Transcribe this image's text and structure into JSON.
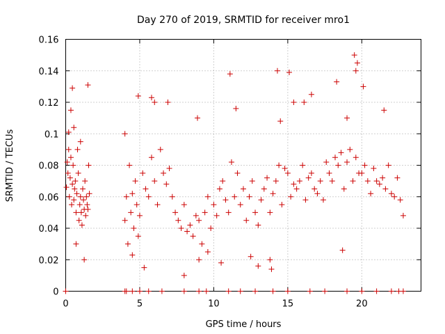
{
  "chart_data": {
    "type": "scatter",
    "title": "Day 270 of 2019, SRMTID for receiver mro1",
    "xlabel": "GPS time / hours",
    "ylabel": "SRMTID / TECUs",
    "xlim": [
      0,
      24
    ],
    "ylim": [
      0,
      0.16
    ],
    "xticks": [
      0,
      5,
      10,
      15,
      20
    ],
    "xtick_labels": [
      "0",
      "5",
      "10",
      "15",
      "20"
    ],
    "yticks": [
      0,
      0.02,
      0.04,
      0.06,
      0.08,
      0.1,
      0.12,
      0.14,
      0.16
    ],
    "ytick_labels": [
      "0",
      "0.02",
      "0.04",
      "0.06",
      "0.08",
      "0.1",
      "0.12",
      "0.14",
      "0.16"
    ],
    "grid": true,
    "marker": "plus",
    "color": "#cc0000",
    "series": [
      {
        "name": "SRMTID",
        "x": [
          0.05,
          0.1,
          0.15,
          0.2,
          0.25,
          0.3,
          0.35,
          0.4,
          0.45,
          0.5,
          0.55,
          0.6,
          0.65,
          0.7,
          0.75,
          0.8,
          0.85,
          0.9,
          0.95,
          1.0,
          1.05,
          1.1,
          1.15,
          1.2,
          1.25,
          1.3,
          1.35,
          1.4,
          1.45,
          1.5,
          1.55,
          1.6,
          0.2,
          0.35,
          0.45,
          0.55,
          0.7,
          1.0,
          1.25,
          1.5,
          4.0,
          4.1,
          4.2,
          4.3,
          4.4,
          4.5,
          4.6,
          4.7,
          4.8,
          4.9,
          5.0,
          5.2,
          5.4,
          5.6,
          5.8,
          6.0,
          6.2,
          6.4,
          6.6,
          6.8,
          7.0,
          7.2,
          7.4,
          7.6,
          7.8,
          8.0,
          8.2,
          8.4,
          8.6,
          8.8,
          9.0,
          9.2,
          9.4,
          9.6,
          9.8,
          10.0,
          10.2,
          10.4,
          10.6,
          10.8,
          11.0,
          11.2,
          11.4,
          11.6,
          11.8,
          12.0,
          12.2,
          12.4,
          12.6,
          12.8,
          13.0,
          13.2,
          13.4,
          13.6,
          13.8,
          14.0,
          14.2,
          14.4,
          14.6,
          14.8,
          15.0,
          15.2,
          15.4,
          15.6,
          15.8,
          16.0,
          16.2,
          16.4,
          16.6,
          16.8,
          17.0,
          17.2,
          17.4,
          17.6,
          17.8,
          18.0,
          18.2,
          18.4,
          18.6,
          18.8,
          19.0,
          19.2,
          19.4,
          19.6,
          19.8,
          20.0,
          20.2,
          20.4,
          20.6,
          20.8,
          21.0,
          21.2,
          21.4,
          21.6,
          21.8,
          22.0,
          22.2,
          22.4,
          22.6,
          22.8,
          4.9,
          5.8,
          6.0,
          8.9,
          11.1,
          11.5,
          13.9,
          14.3,
          14.5,
          15.1,
          16.1,
          18.3,
          19.5,
          19.6,
          19.7,
          20.1,
          4.0,
          4.5,
          5.3,
          6.9,
          8.0,
          9.0,
          9.6,
          10.5,
          12.5,
          13.0,
          13.8,
          15.4,
          16.6,
          18.7,
          19.0,
          21.5,
          0.0,
          4.0,
          4.1,
          4.5,
          5.0,
          5.6,
          6.5,
          8.0,
          9.0,
          9.5,
          11.0,
          11.8,
          12.8,
          14.0,
          15.0,
          16.5,
          17.5,
          19.0,
          20.0,
          21.0,
          22.0,
          22.5,
          22.8
        ],
        "y": [
          0.066,
          0.082,
          0.075,
          0.09,
          0.06,
          0.072,
          0.085,
          0.055,
          0.068,
          0.08,
          0.058,
          0.065,
          0.07,
          0.05,
          0.062,
          0.09,
          0.075,
          0.045,
          0.055,
          0.06,
          0.05,
          0.042,
          0.065,
          0.058,
          0.052,
          0.07,
          0.048,
          0.06,
          0.055,
          0.052,
          0.08,
          0.062,
          0.101,
          0.115,
          0.129,
          0.104,
          0.03,
          0.095,
          0.02,
          0.131,
          0.045,
          0.06,
          0.03,
          0.08,
          0.05,
          0.062,
          0.04,
          0.07,
          0.055,
          0.035,
          0.048,
          0.075,
          0.065,
          0.06,
          0.085,
          0.07,
          0.055,
          0.09,
          0.075,
          0.068,
          0.078,
          0.06,
          0.05,
          0.045,
          0.04,
          0.055,
          0.038,
          0.042,
          0.035,
          0.048,
          0.045,
          0.03,
          0.05,
          0.06,
          0.04,
          0.055,
          0.048,
          0.065,
          0.07,
          0.058,
          0.05,
          0.082,
          0.06,
          0.075,
          0.055,
          0.065,
          0.045,
          0.06,
          0.07,
          0.05,
          0.042,
          0.058,
          0.065,
          0.072,
          0.05,
          0.062,
          0.07,
          0.08,
          0.055,
          0.078,
          0.075,
          0.06,
          0.068,
          0.065,
          0.07,
          0.08,
          0.058,
          0.072,
          0.075,
          0.065,
          0.062,
          0.07,
          0.058,
          0.082,
          0.075,
          0.07,
          0.085,
          0.08,
          0.088,
          0.065,
          0.082,
          0.09,
          0.07,
          0.085,
          0.075,
          0.075,
          0.08,
          0.07,
          0.062,
          0.078,
          0.07,
          0.068,
          0.072,
          0.065,
          0.08,
          0.062,
          0.06,
          0.072,
          0.058,
          0.048,
          0.124,
          0.123,
          0.12,
          0.11,
          0.138,
          0.116,
          0.014,
          0.14,
          0.108,
          0.139,
          0.12,
          0.133,
          0.15,
          0.14,
          0.145,
          0.13,
          0.1,
          0.023,
          0.015,
          0.12,
          0.01,
          0.02,
          0.025,
          0.018,
          0.022,
          0.016,
          0.02,
          0.12,
          0.125,
          0.026,
          0.11,
          0.115,
          0,
          0,
          0,
          0,
          0,
          0,
          0,
          0,
          0,
          0,
          0,
          0,
          0,
          0,
          0,
          0,
          0,
          0,
          0,
          0,
          0,
          0,
          0
        ]
      }
    ]
  }
}
